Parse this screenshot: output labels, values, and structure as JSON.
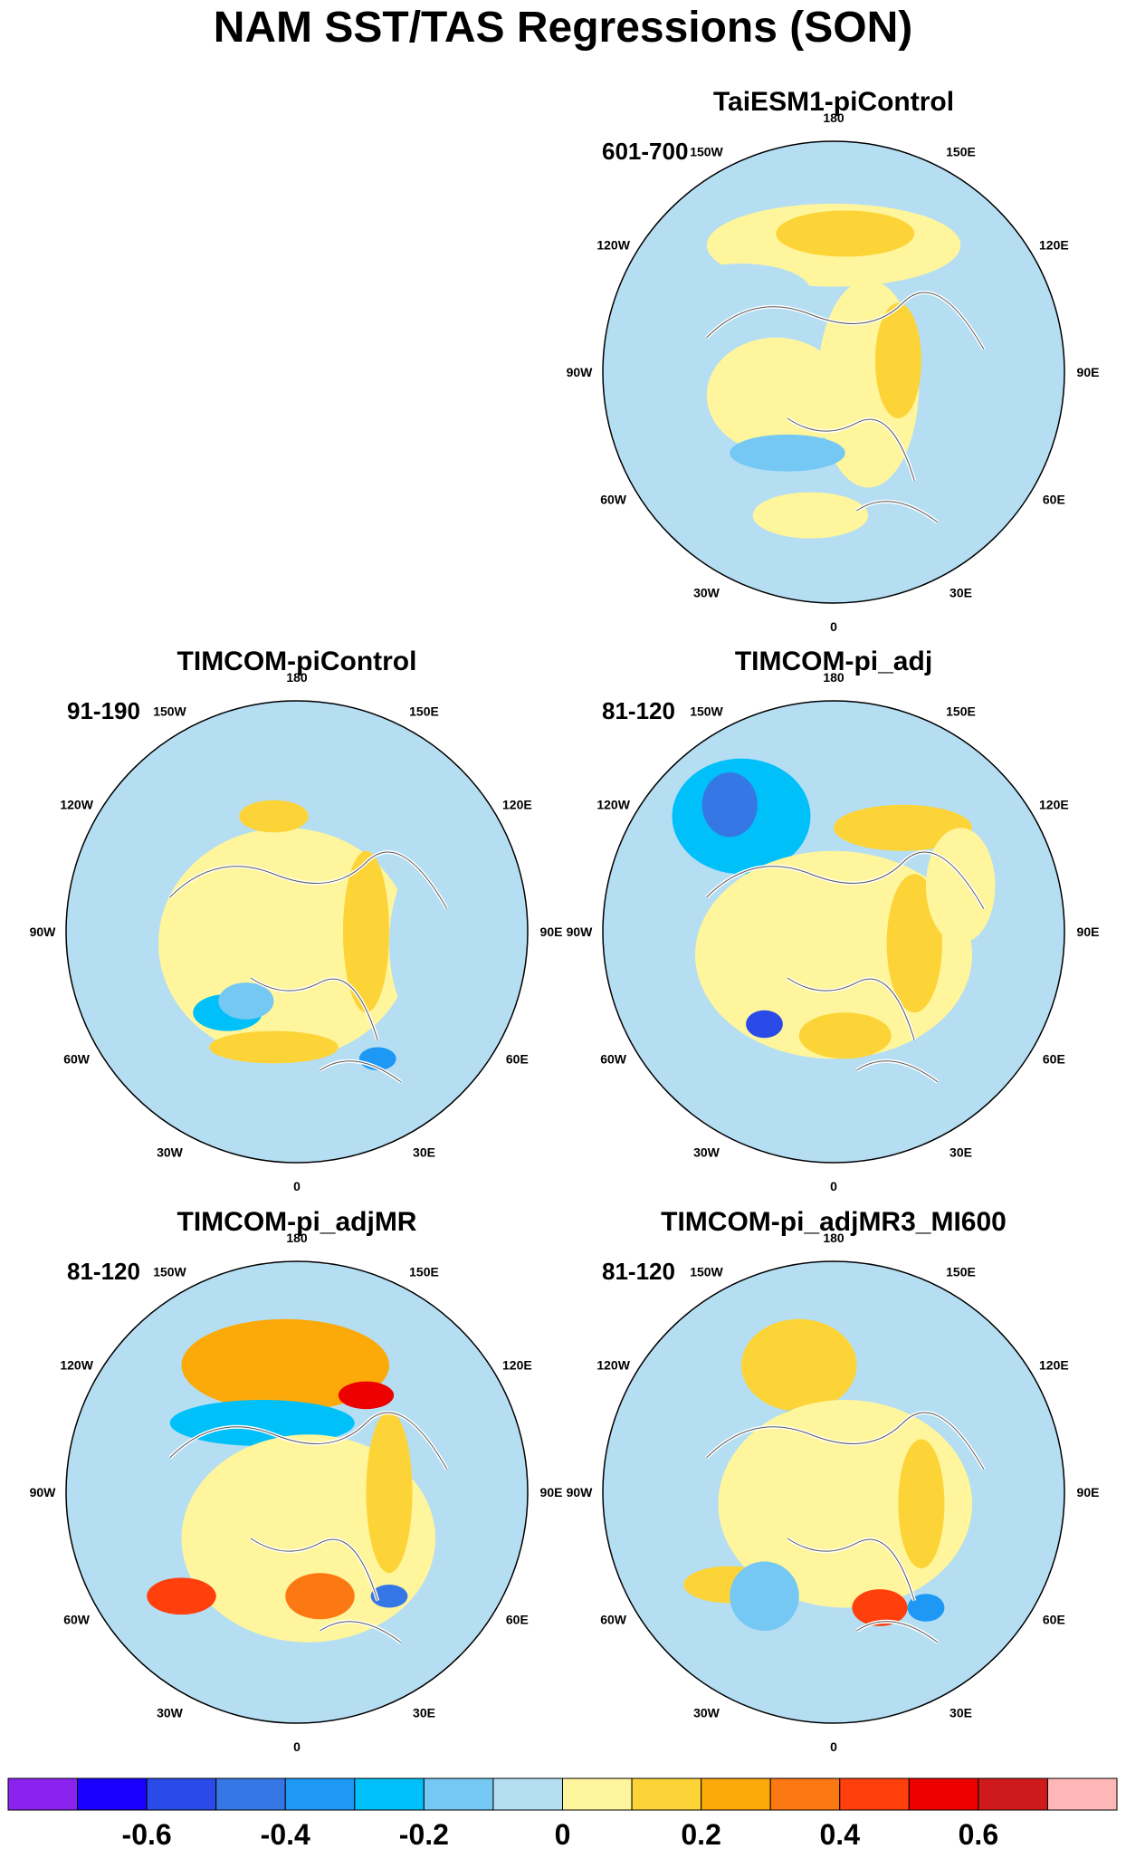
{
  "figure": {
    "title": "NAM SST/TAS Regressions (SON)"
  },
  "panels": [
    {
      "id": "taiesm",
      "title": "TaiESM1-piControl",
      "years": "601-700"
    },
    {
      "id": "timcom-pictl",
      "title": "TIMCOM-piControl",
      "years": "91-190"
    },
    {
      "id": "timcom-piadj",
      "title": "TIMCOM-pi_adj",
      "years": "81-120"
    },
    {
      "id": "timcom-piadjmr",
      "title": "TIMCOM-pi_adjMR",
      "years": "81-120"
    },
    {
      "id": "timcom-piadjmr3",
      "title": "TIMCOM-pi_adjMR3_MI600",
      "years": "81-120"
    }
  ],
  "longitude_labels": [
    "180",
    "150E",
    "120E",
    "90E",
    "60E",
    "30E",
    "0",
    "30W",
    "60W",
    "90W",
    "120W",
    "150W"
  ],
  "colorbar": {
    "colors": [
      "#8b22ee",
      "#1a00ff",
      "#2a4be8",
      "#3677e6",
      "#1e98f5",
      "#00c0fa",
      "#74c8f3",
      "#b5def3",
      "#fff59c",
      "#fdd438",
      "#fca90a",
      "#fb7812",
      "#ff3f0c",
      "#ec0000",
      "#cf1a1c",
      "#ffb6b6"
    ],
    "tick_labels": [
      "-0.6",
      "-0.4",
      "-0.2",
      "0",
      "0.2",
      "0.4",
      "0.6"
    ]
  }
}
